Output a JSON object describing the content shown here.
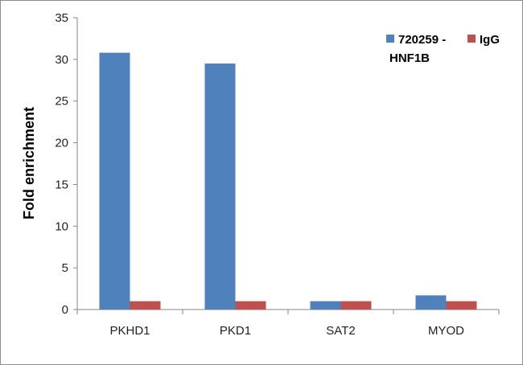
{
  "chart_data": {
    "type": "bar",
    "categories": [
      "PKHD1",
      "PKD1",
      "SAT2",
      "MYOD"
    ],
    "series": [
      {
        "name": "720259 - HNF1B",
        "values": [
          30.8,
          29.5,
          1.0,
          1.7
        ],
        "color": "#4f81bd"
      },
      {
        "name": "IgG",
        "values": [
          1.0,
          1.0,
          1.0,
          1.0
        ],
        "color": "#c0504d"
      }
    ],
    "title": "",
    "xlabel": "",
    "ylabel": "Fold enrichment",
    "ylim": [
      0,
      35
    ],
    "yticks": [
      "0",
      "5",
      "10",
      "15",
      "20",
      "25",
      "30",
      "35"
    ],
    "grid": false,
    "legend_position": "top-right",
    "legend": {
      "series1_line1": "720259 -",
      "series1_line2": "HNF1B",
      "series2": "IgG"
    }
  }
}
